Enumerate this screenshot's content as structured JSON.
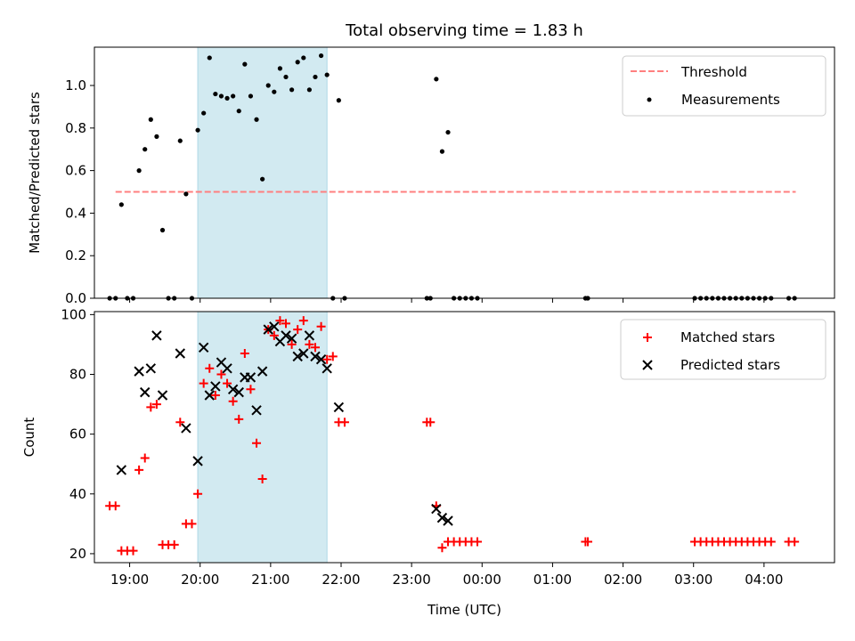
{
  "chart_data": [
    {
      "type": "scatter",
      "title": "Total observing time = 1.83 h",
      "xlabel": "",
      "ylabel": "Matched/Predicted stars",
      "xlim": [
        "18:30",
        "05:00"
      ],
      "ylim": [
        0,
        1.18
      ],
      "yticks": [
        "0.0",
        "0.2",
        "0.4",
        "0.6",
        "0.8",
        "1.0"
      ],
      "highlight_span": [
        "19:58",
        "21:48"
      ],
      "highlight_color": "#add8e6",
      "threshold": {
        "name": "Threshold",
        "value": 0.5,
        "x_range": [
          "18:48",
          "04:27"
        ],
        "color": "#ff7f7f"
      },
      "legend_location": "upper right",
      "series": [
        {
          "name": "Measurements",
          "color": "#000000",
          "marker": "dot",
          "points": [
            [
              "18:43",
              0
            ],
            [
              "18:48",
              0
            ],
            [
              "18:53",
              0.44
            ],
            [
              "18:58",
              0
            ],
            [
              "19:03",
              0
            ],
            [
              "19:08",
              0.6
            ],
            [
              "19:13",
              0.7
            ],
            [
              "19:18",
              0.84
            ],
            [
              "19:23",
              0.76
            ],
            [
              "19:28",
              0.32
            ],
            [
              "19:33",
              0
            ],
            [
              "19:38",
              0
            ],
            [
              "19:43",
              0.74
            ],
            [
              "19:48",
              0.49
            ],
            [
              "19:53",
              0
            ],
            [
              "19:58",
              0.79
            ],
            [
              "20:03",
              0.87
            ],
            [
              "20:08",
              1.13
            ],
            [
              "20:13",
              0.96
            ],
            [
              "20:18",
              0.95
            ],
            [
              "20:23",
              0.94
            ],
            [
              "20:28",
              0.95
            ],
            [
              "20:33",
              0.88
            ],
            [
              "20:38",
              1.1
            ],
            [
              "20:43",
              0.95
            ],
            [
              "20:48",
              0.84
            ],
            [
              "20:53",
              0.56
            ],
            [
              "20:58",
              1.0
            ],
            [
              "21:03",
              0.97
            ],
            [
              "21:08",
              1.08
            ],
            [
              "21:13",
              1.04
            ],
            [
              "21:18",
              0.98
            ],
            [
              "21:23",
              1.11
            ],
            [
              "21:28",
              1.13
            ],
            [
              "21:33",
              0.98
            ],
            [
              "21:38",
              1.04
            ],
            [
              "21:43",
              1.14
            ],
            [
              "21:48",
              1.05
            ],
            [
              "21:53",
              0
            ],
            [
              "21:58",
              0.93
            ],
            [
              "22:03",
              0
            ],
            [
              "23:13",
              0
            ],
            [
              "23:16",
              0
            ],
            [
              "23:21",
              1.03
            ],
            [
              "23:26",
              0.69
            ],
            [
              "23:31",
              0.78
            ],
            [
              "23:36",
              0
            ],
            [
              "23:41",
              0
            ],
            [
              "23:46",
              0
            ],
            [
              "23:51",
              0
            ],
            [
              "23:56",
              0
            ],
            [
              "01:28",
              0
            ],
            [
              "01:30",
              0
            ],
            [
              "03:01",
              0
            ],
            [
              "03:06",
              0
            ],
            [
              "03:11",
              0
            ],
            [
              "03:16",
              0
            ],
            [
              "03:21",
              0
            ],
            [
              "03:26",
              0
            ],
            [
              "03:31",
              0
            ],
            [
              "03:36",
              0
            ],
            [
              "03:41",
              0
            ],
            [
              "03:46",
              0
            ],
            [
              "03:51",
              0
            ],
            [
              "03:56",
              0
            ],
            [
              "04:01",
              0
            ],
            [
              "04:06",
              0
            ],
            [
              "04:21",
              0
            ],
            [
              "04:26",
              0
            ]
          ]
        }
      ]
    },
    {
      "type": "scatter",
      "title": "",
      "xlabel": "Time (UTC)",
      "ylabel": "Count",
      "xlim": [
        "18:30",
        "05:00"
      ],
      "ylim": [
        17,
        101
      ],
      "yticks": [
        "20",
        "40",
        "60",
        "80",
        "100"
      ],
      "xticks": [
        "19:00",
        "20:00",
        "21:00",
        "22:00",
        "23:00",
        "00:00",
        "01:00",
        "02:00",
        "03:00",
        "04:00"
      ],
      "highlight_span": [
        "19:58",
        "21:48"
      ],
      "highlight_color": "#add8e6",
      "legend_location": "upper right",
      "series": [
        {
          "name": "Matched stars",
          "color": "#ff0000",
          "marker": "plus",
          "points": [
            [
              "18:43",
              36
            ],
            [
              "18:48",
              36
            ],
            [
              "18:53",
              21
            ],
            [
              "18:58",
              21
            ],
            [
              "19:03",
              21
            ],
            [
              "19:08",
              48
            ],
            [
              "19:13",
              52
            ],
            [
              "19:18",
              69
            ],
            [
              "19:23",
              70
            ],
            [
              "19:28",
              23
            ],
            [
              "19:33",
              23
            ],
            [
              "19:38",
              23
            ],
            [
              "19:43",
              64
            ],
            [
              "19:48",
              30
            ],
            [
              "19:53",
              30
            ],
            [
              "19:58",
              40
            ],
            [
              "20:03",
              77
            ],
            [
              "20:08",
              82
            ],
            [
              "20:13",
              73
            ],
            [
              "20:18",
              80
            ],
            [
              "20:23",
              77
            ],
            [
              "20:28",
              71
            ],
            [
              "20:33",
              65
            ],
            [
              "20:38",
              87
            ],
            [
              "20:43",
              75
            ],
            [
              "20:48",
              57
            ],
            [
              "20:53",
              45
            ],
            [
              "20:58",
              95
            ],
            [
              "21:03",
              93
            ],
            [
              "21:08",
              98
            ],
            [
              "21:13",
              97
            ],
            [
              "21:18",
              90
            ],
            [
              "21:23",
              95
            ],
            [
              "21:28",
              98
            ],
            [
              "21:33",
              90
            ],
            [
              "21:38",
              89
            ],
            [
              "21:43",
              96
            ],
            [
              "21:48",
              85
            ],
            [
              "21:53",
              86
            ],
            [
              "21:58",
              64
            ],
            [
              "22:03",
              64
            ],
            [
              "23:13",
              64
            ],
            [
              "23:16",
              64
            ],
            [
              "23:21",
              36
            ],
            [
              "23:26",
              22
            ],
            [
              "23:31",
              24
            ],
            [
              "23:36",
              24
            ],
            [
              "23:41",
              24
            ],
            [
              "23:46",
              24
            ],
            [
              "23:51",
              24
            ],
            [
              "23:56",
              24
            ],
            [
              "01:28",
              24
            ],
            [
              "01:30",
              24
            ],
            [
              "03:01",
              24
            ],
            [
              "03:06",
              24
            ],
            [
              "03:11",
              24
            ],
            [
              "03:16",
              24
            ],
            [
              "03:21",
              24
            ],
            [
              "03:26",
              24
            ],
            [
              "03:31",
              24
            ],
            [
              "03:36",
              24
            ],
            [
              "03:41",
              24
            ],
            [
              "03:46",
              24
            ],
            [
              "03:51",
              24
            ],
            [
              "03:56",
              24
            ],
            [
              "04:01",
              24
            ],
            [
              "04:06",
              24
            ],
            [
              "04:21",
              24
            ],
            [
              "04:26",
              24
            ]
          ]
        },
        {
          "name": "Predicted stars",
          "color": "#000000",
          "marker": "x",
          "points": [
            [
              "18:53",
              48
            ],
            [
              "19:08",
              81
            ],
            [
              "19:13",
              74
            ],
            [
              "19:18",
              82
            ],
            [
              "19:23",
              93
            ],
            [
              "19:28",
              73
            ],
            [
              "19:43",
              87
            ],
            [
              "19:48",
              62
            ],
            [
              "19:58",
              51
            ],
            [
              "20:03",
              89
            ],
            [
              "20:08",
              73
            ],
            [
              "20:13",
              76
            ],
            [
              "20:18",
              84
            ],
            [
              "20:23",
              82
            ],
            [
              "20:28",
              75
            ],
            [
              "20:33",
              74
            ],
            [
              "20:38",
              79
            ],
            [
              "20:43",
              79
            ],
            [
              "20:48",
              68
            ],
            [
              "20:53",
              81
            ],
            [
              "20:58",
              95
            ],
            [
              "21:03",
              96
            ],
            [
              "21:08",
              91
            ],
            [
              "21:13",
              93
            ],
            [
              "21:18",
              92
            ],
            [
              "21:23",
              86
            ],
            [
              "21:28",
              87
            ],
            [
              "21:33",
              93
            ],
            [
              "21:38",
              86
            ],
            [
              "21:43",
              85
            ],
            [
              "21:48",
              82
            ],
            [
              "21:58",
              69
            ],
            [
              "23:21",
              35
            ],
            [
              "23:26",
              32
            ],
            [
              "23:31",
              31
            ]
          ]
        }
      ]
    }
  ]
}
